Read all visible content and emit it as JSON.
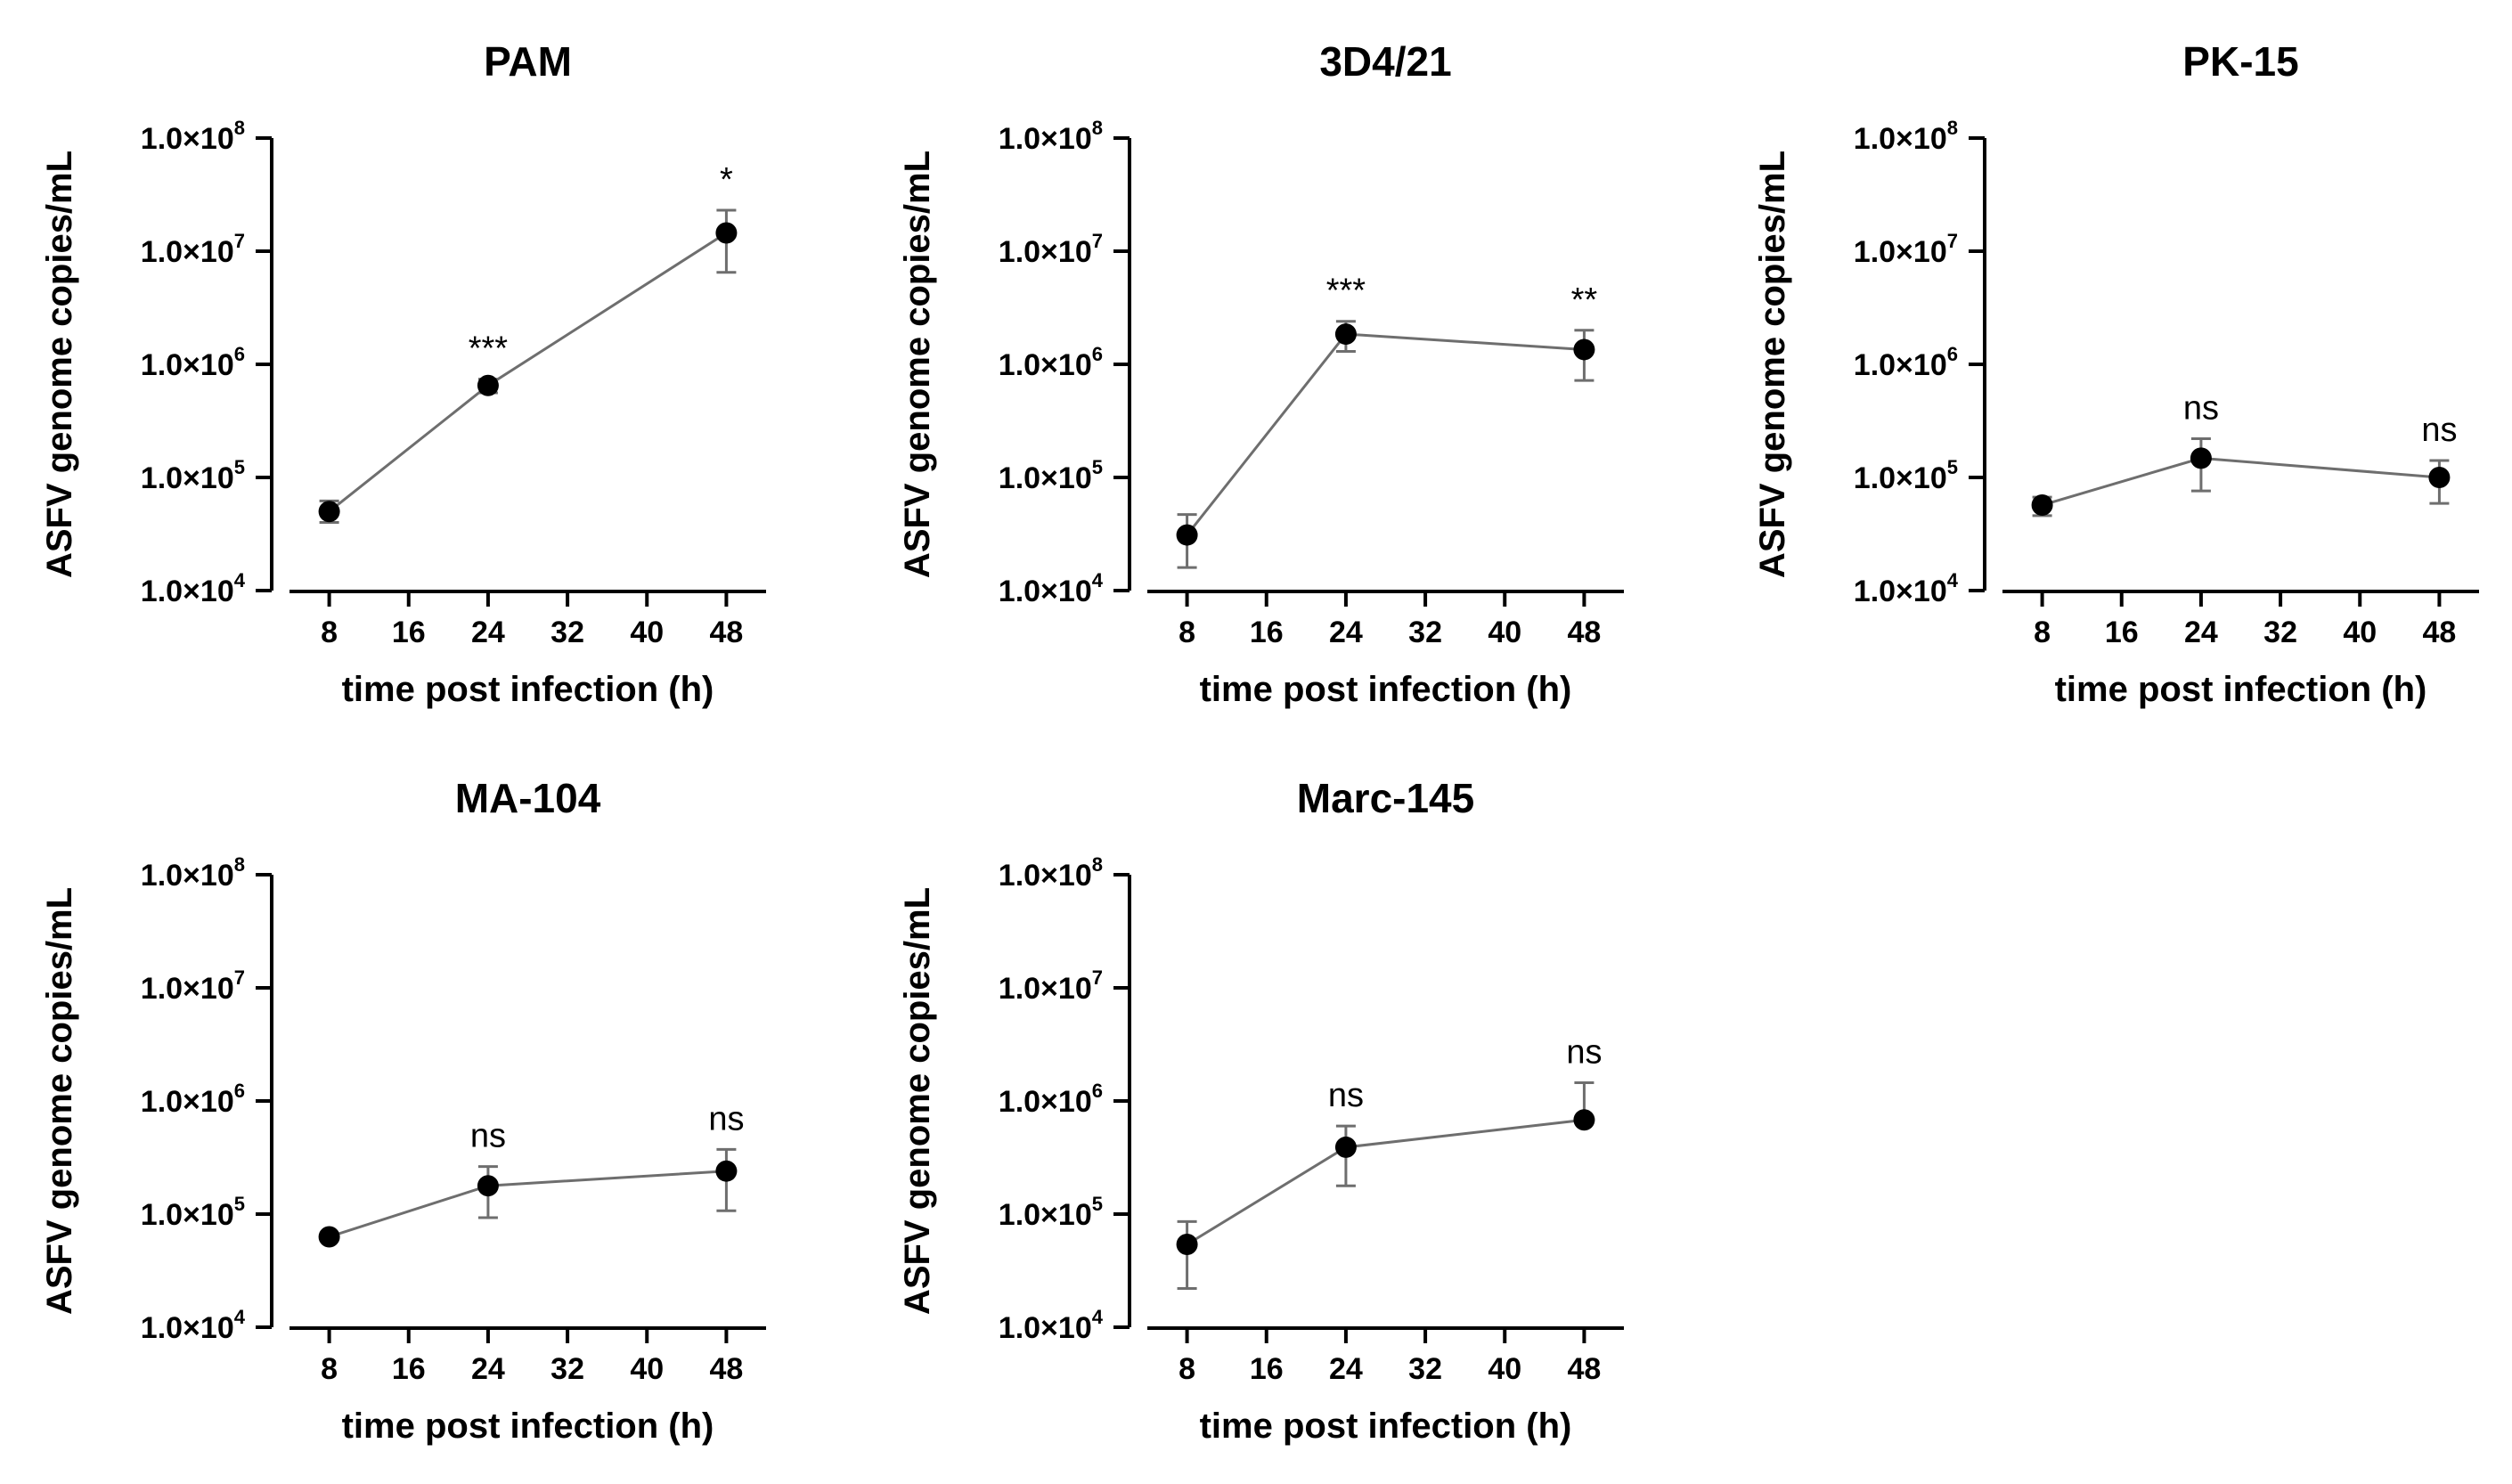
{
  "chart_data": [
    {
      "type": "line",
      "title": "PAM",
      "xlabel": "time post infection (h)",
      "ylabel": "ASFV genome copies/mL",
      "yscale": "log",
      "ylim": [
        10000,
        100000000
      ],
      "yticks": [
        {
          "mantissa": "1.0×10",
          "exp": "4"
        },
        {
          "mantissa": "1.0×10",
          "exp": "5"
        },
        {
          "mantissa": "1.0×10",
          "exp": "6"
        },
        {
          "mantissa": "1.0×10",
          "exp": "7"
        },
        {
          "mantissa": "1.0×10",
          "exp": "8"
        }
      ],
      "xlim": [
        4,
        52
      ],
      "xticks": [
        "8",
        "16",
        "24",
        "32",
        "40",
        "48"
      ],
      "x": [
        8,
        24,
        48
      ],
      "values": [
        50000,
        650000,
        14500000
      ],
      "err_low": [
        40000,
        560000,
        6500000
      ],
      "err_high": [
        62000,
        740000,
        23000000
      ],
      "significance": [
        "",
        "***",
        "*"
      ]
    },
    {
      "type": "line",
      "title": "3D4/21",
      "xlabel": "time post infection (h)",
      "ylabel": "ASFV genome copies/mL",
      "yscale": "log",
      "ylim": [
        10000,
        100000000
      ],
      "yticks": [
        {
          "mantissa": "1.0×10",
          "exp": "4"
        },
        {
          "mantissa": "1.0×10",
          "exp": "5"
        },
        {
          "mantissa": "1.0×10",
          "exp": "6"
        },
        {
          "mantissa": "1.0×10",
          "exp": "7"
        },
        {
          "mantissa": "1.0×10",
          "exp": "8"
        }
      ],
      "xlim": [
        4,
        52
      ],
      "xticks": [
        "8",
        "16",
        "24",
        "32",
        "40",
        "48"
      ],
      "x": [
        8,
        24,
        48
      ],
      "values": [
        31000,
        1850000,
        1350000
      ],
      "err_low": [
        16000,
        1300000,
        720000
      ],
      "err_high": [
        47000,
        2400000,
        2000000
      ],
      "significance": [
        "",
        "***",
        "**"
      ]
    },
    {
      "type": "line",
      "title": "PK-15",
      "xlabel": "time post infection (h)",
      "ylabel": "ASFV genome copies/mL",
      "yscale": "log",
      "ylim": [
        10000,
        100000000
      ],
      "yticks": [
        {
          "mantissa": "1.0×10",
          "exp": "4"
        },
        {
          "mantissa": "1.0×10",
          "exp": "5"
        },
        {
          "mantissa": "1.0×10",
          "exp": "6"
        },
        {
          "mantissa": "1.0×10",
          "exp": "7"
        },
        {
          "mantissa": "1.0×10",
          "exp": "8"
        }
      ],
      "xlim": [
        4,
        52
      ],
      "xticks": [
        "8",
        "16",
        "24",
        "32",
        "40",
        "48"
      ],
      "x": [
        8,
        24,
        48
      ],
      "values": [
        57000,
        148000,
        100000
      ],
      "err_low": [
        46000,
        76000,
        59000
      ],
      "err_high": [
        67000,
        220000,
        141000
      ],
      "significance": [
        "",
        "ns",
        "ns"
      ]
    },
    {
      "type": "line",
      "title": "MA-104",
      "xlabel": "time post infection (h)",
      "ylabel": "ASFV genome copies/mL",
      "yscale": "log",
      "ylim": [
        10000,
        100000000
      ],
      "yticks": [
        {
          "mantissa": "1.0×10",
          "exp": "4"
        },
        {
          "mantissa": "1.0×10",
          "exp": "5"
        },
        {
          "mantissa": "1.0×10",
          "exp": "6"
        },
        {
          "mantissa": "1.0×10",
          "exp": "7"
        },
        {
          "mantissa": "1.0×10",
          "exp": "8"
        }
      ],
      "xlim": [
        4,
        52
      ],
      "xticks": [
        "8",
        "16",
        "24",
        "32",
        "40",
        "48"
      ],
      "x": [
        8,
        24,
        48
      ],
      "values": [
        63000,
        178000,
        240000
      ],
      "err_low": [
        60000,
        93000,
        107000
      ],
      "err_high": [
        66000,
        263000,
        373000
      ],
      "significance": [
        "",
        "ns",
        "ns"
      ]
    },
    {
      "type": "line",
      "title": "Marc-145",
      "xlabel": "time post infection (h)",
      "ylabel": "ASFV genome copies/mL",
      "yscale": "log",
      "ylim": [
        10000,
        100000000
      ],
      "yticks": [
        {
          "mantissa": "1.0×10",
          "exp": "4"
        },
        {
          "mantissa": "1.0×10",
          "exp": "5"
        },
        {
          "mantissa": "1.0×10",
          "exp": "6"
        },
        {
          "mantissa": "1.0×10",
          "exp": "7"
        },
        {
          "mantissa": "1.0×10",
          "exp": "8"
        }
      ],
      "xlim": [
        4,
        52
      ],
      "xticks": [
        "8",
        "16",
        "24",
        "32",
        "40",
        "48"
      ],
      "x": [
        8,
        24,
        48
      ],
      "values": [
        54000,
        390000,
        680000
      ],
      "err_low": [
        22000,
        178000,
        640000
      ],
      "err_high": [
        86000,
        600000,
        1450000
      ],
      "significance": [
        "",
        "ns",
        "ns"
      ]
    }
  ],
  "style": {
    "line_color": "#6e6e6e",
    "marker_color": "#000000",
    "axis_color": "#000000"
  }
}
